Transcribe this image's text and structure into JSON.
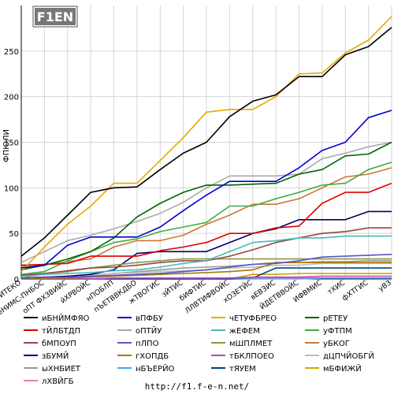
{
  "logo_text": "F1EN",
  "footer_url": "http://f1.f-e-n.net/",
  "chart_data": {
    "type": "line",
    "ylabel": "ФПЮЛИ",
    "ylim": [
      0,
      300
    ],
    "yticks": [
      0,
      50,
      100,
      150,
      200,
      250
    ],
    "grid": true,
    "legend_position": "bottom",
    "categories": [
      "вВИТЕКО",
      "еНИМС-ПНБОС",
      "оПТ ФХЗВИЙС",
      "йХРВОЙС",
      "нПОБЛП",
      "пЪЕТВВКДБО",
      "жТВОГИС",
      "зЙТИС",
      "бИФТИС",
      "ЛЛВТИФВОЙС",
      "хОЗЕТЙС",
      "вЕВЗИС",
      "ЙДЕТВВОЙС",
      "ИФВМИС",
      "тХИС",
      "фХТГИС",
      "уВЗ"
    ],
    "series": [
      {
        "name": "иБНЙМФЯО",
        "color": "#000000",
        "values": [
          25,
          45,
          70,
          95,
          100,
          101,
          120,
          138,
          150,
          178,
          195,
          202,
          222,
          222,
          246,
          255,
          276
        ]
      },
      {
        "name": "вПФБУ",
        "color": "#0000cc",
        "values": [
          12,
          15,
          37,
          46,
          46,
          46,
          57,
          75,
          92,
          107,
          107,
          107,
          122,
          141,
          150,
          177,
          185
        ]
      },
      {
        "name": "чЕТУФБРЕО",
        "color": "#e8a800",
        "values": [
          8,
          35,
          60,
          80,
          105,
          105,
          130,
          155,
          183,
          186,
          186,
          200,
          225,
          226,
          248,
          262,
          288
        ]
      },
      {
        "name": "рЕТЕУ",
        "color": "#006600",
        "values": [
          10,
          15,
          22,
          30,
          45,
          68,
          83,
          95,
          103,
          103,
          104,
          105,
          115,
          120,
          135,
          137,
          150
        ]
      },
      {
        "name": "тЙЛБТДП",
        "color": "#dd0000",
        "values": [
          15,
          16,
          17,
          25,
          25,
          25,
          31,
          35,
          40,
          50,
          50,
          56,
          58,
          83,
          95,
          95,
          105
        ]
      },
      {
        "name": "оПТЙУ",
        "color": "#aaaaaa",
        "values": [
          18,
          30,
          42,
          48,
          55,
          63,
          72,
          84,
          100,
          113,
          113,
          113,
          115,
          132,
          138,
          145,
          150
        ]
      },
      {
        "name": "жЕФЕМ",
        "color": "#44bbbb",
        "values": [
          2,
          5,
          6,
          7,
          9,
          10,
          13,
          17,
          20,
          30,
          40,
          42,
          45,
          45,
          47,
          47,
          47
        ]
      },
      {
        "name": "уФТПМ",
        "color": "#44aa44",
        "values": [
          5,
          8,
          20,
          30,
          40,
          44,
          52,
          57,
          62,
          80,
          80,
          88,
          95,
          103,
          105,
          120,
          128
        ]
      },
      {
        "name": "бМПОУП",
        "color": "#994444",
        "values": [
          4,
          6,
          9,
          12,
          13,
          15,
          18,
          20,
          20,
          25,
          32,
          40,
          45,
          50,
          52,
          56,
          56
        ]
      },
      {
        "name": "пЛПО",
        "color": "#5555cc",
        "values": [
          1,
          2,
          2,
          3,
          4,
          5,
          6,
          8,
          10,
          13,
          16,
          17,
          20,
          24,
          25,
          26,
          27
        ]
      },
      {
        "name": "мШПЛМЕТ",
        "color": "#889944",
        "values": [
          4,
          6,
          8,
          12,
          15,
          18,
          20,
          22,
          22,
          22,
          22,
          22,
          22,
          22,
          22,
          22,
          22
        ]
      },
      {
        "name": "уБКОГ",
        "color": "#cc7733",
        "values": [
          14,
          16,
          19,
          22,
          35,
          42,
          42,
          48,
          60,
          70,
          82,
          82,
          88,
          100,
          112,
          115,
          122
        ]
      },
      {
        "name": "зБУМЙ",
        "color": "#000066",
        "values": [
          1,
          2,
          3,
          5,
          10,
          28,
          30,
          30,
          30,
          40,
          50,
          55,
          65,
          65,
          65,
          74,
          74
        ]
      },
      {
        "name": "гХОПДБ",
        "color": "#aa7700",
        "values": [
          0,
          1,
          1,
          2,
          3,
          4,
          5,
          6,
          7,
          8,
          10,
          18,
          18,
          18,
          18,
          18,
          18
        ]
      },
      {
        "name": "тБКЛПОЕО",
        "color": "#bb44bb",
        "values": [
          0,
          0,
          0,
          0,
          1,
          1,
          1,
          1,
          1,
          1,
          2,
          2,
          2,
          3,
          3,
          3,
          3
        ]
      },
      {
        "name": "дЦПЧЙОБГЙ",
        "color": "#bbbbbb",
        "values": [
          1,
          2,
          3,
          4,
          6,
          7,
          8,
          9,
          10,
          12,
          13,
          15,
          15,
          17,
          17,
          17,
          17
        ]
      },
      {
        "name": "ыХНБИЕТ",
        "color": "#999999",
        "values": [
          1,
          2,
          3,
          4,
          6,
          8,
          10,
          12,
          13,
          14,
          16,
          18,
          18,
          19,
          19,
          20,
          20
        ]
      },
      {
        "name": "нБЪЕРЙО",
        "color": "#44aaee",
        "values": [
          0,
          0,
          0,
          0,
          1,
          1,
          1,
          1,
          1,
          1,
          1,
          1,
          1,
          1,
          1,
          1,
          1
        ]
      },
      {
        "name": "тЯУЕМ",
        "color": "#004488",
        "values": [
          0,
          0,
          0,
          0,
          0,
          0,
          0,
          0,
          0,
          0,
          1,
          12,
          12,
          12,
          12,
          12,
          12
        ]
      },
      {
        "name": "мБФИЖЙ",
        "color": "#ccaa00",
        "values": [
          0,
          0,
          0,
          0,
          0,
          0,
          0,
          0,
          0,
          0,
          5,
          5,
          6,
          6,
          6,
          6,
          6
        ]
      },
      {
        "name": "лХВЙГБ",
        "color": "#ee77bb",
        "values": [
          0,
          0,
          0,
          0,
          0,
          0,
          0,
          0,
          0,
          0,
          0,
          0,
          0,
          1,
          1,
          1,
          1
        ]
      }
    ]
  }
}
